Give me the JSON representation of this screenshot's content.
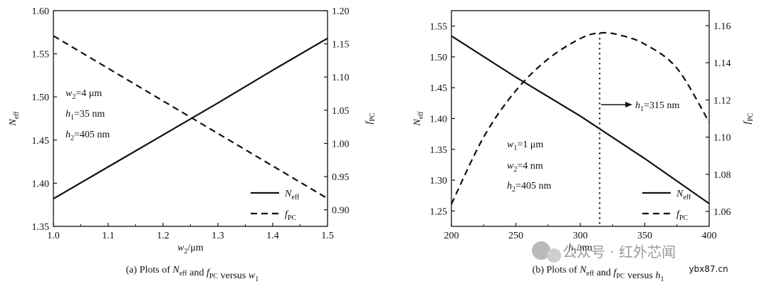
{
  "chart_data": [
    {
      "type": "line",
      "caption": "(a) Plots of N_eff and f_PC versus w_1",
      "x": {
        "label": "w₂/μm",
        "range": [
          1.0,
          1.5
        ],
        "ticks": [
          "1.0",
          "1.1",
          "1.2",
          "1.3",
          "1.4",
          "1.5"
        ]
      },
      "y_left": {
        "label": "N_eff",
        "range": [
          1.35,
          1.6
        ],
        "ticks": [
          "1.35",
          "1.40",
          "1.45",
          "1.50",
          "1.55",
          "1.60"
        ]
      },
      "y_right": {
        "label": "f_PC",
        "range": [
          0.875,
          1.2
        ],
        "ticks": [
          "0.90",
          "0.95",
          "1.00",
          "1.05",
          "1.10",
          "1.15",
          "1.20"
        ]
      },
      "series": [
        {
          "name": "N_eff",
          "axis": "left",
          "style": "solid",
          "x": [
            1.0,
            1.1,
            1.2,
            1.3,
            1.4,
            1.5
          ],
          "values": [
            1.382,
            1.419,
            1.456,
            1.493,
            1.531,
            1.568
          ]
        },
        {
          "name": "f_PC",
          "axis": "right",
          "style": "dashed",
          "x": [
            1.0,
            1.1,
            1.2,
            1.3,
            1.4,
            1.5
          ],
          "values": [
            1.162,
            1.113,
            1.064,
            1.015,
            0.966,
            0.917
          ]
        }
      ],
      "annotations": [
        "w₂=4 μm",
        "h₁=35 nm",
        "h₂=405 nm"
      ],
      "legend": [
        "N_eff",
        "f_PC"
      ],
      "legend_position": "bottom-right",
      "grid": false
    },
    {
      "type": "line",
      "caption": "(b) Plots of N_eff and f_PC versus h_1",
      "x": {
        "label": "h₁/nm",
        "range": [
          200,
          400
        ],
        "ticks": [
          "200",
          "250",
          "300",
          "350",
          "400"
        ]
      },
      "y_left": {
        "label": "N_eff",
        "range": [
          1.225,
          1.575
        ],
        "ticks": [
          "1.25",
          "1.30",
          "1.35",
          "1.40",
          "1.45",
          "1.50",
          "1.55"
        ]
      },
      "y_right": {
        "label": "f_PC",
        "range": [
          1.052,
          1.168
        ],
        "ticks": [
          "1.06",
          "1.08",
          "1.10",
          "1.12",
          "1.14",
          "1.16"
        ]
      },
      "series": [
        {
          "name": "N_eff",
          "axis": "left",
          "style": "solid",
          "x": [
            200,
            250,
            300,
            350,
            400
          ],
          "values": [
            1.534,
            1.467,
            1.404,
            1.335,
            1.262
          ]
        },
        {
          "name": "f_PC",
          "axis": "right",
          "style": "dashed",
          "x": [
            200,
            225,
            250,
            275,
            300,
            315,
            330,
            350,
            375,
            400
          ],
          "values": [
            1.064,
            1.1,
            1.125,
            1.142,
            1.153,
            1.156,
            1.155,
            1.15,
            1.137,
            1.108
          ]
        }
      ],
      "marker_line": {
        "x": 315,
        "style": "dotted",
        "label": "h₁=315 nm"
      },
      "annotations": [
        "w₁=1 μm",
        "w₂=4 nm",
        "h₂=405 nm"
      ],
      "legend": [
        "N_eff",
        "f_PC"
      ],
      "legend_position": "bottom-right",
      "grid": false
    }
  ],
  "watermark": {
    "brand": "公众号 · 红外芯闻",
    "site": "ybx87.cn"
  }
}
